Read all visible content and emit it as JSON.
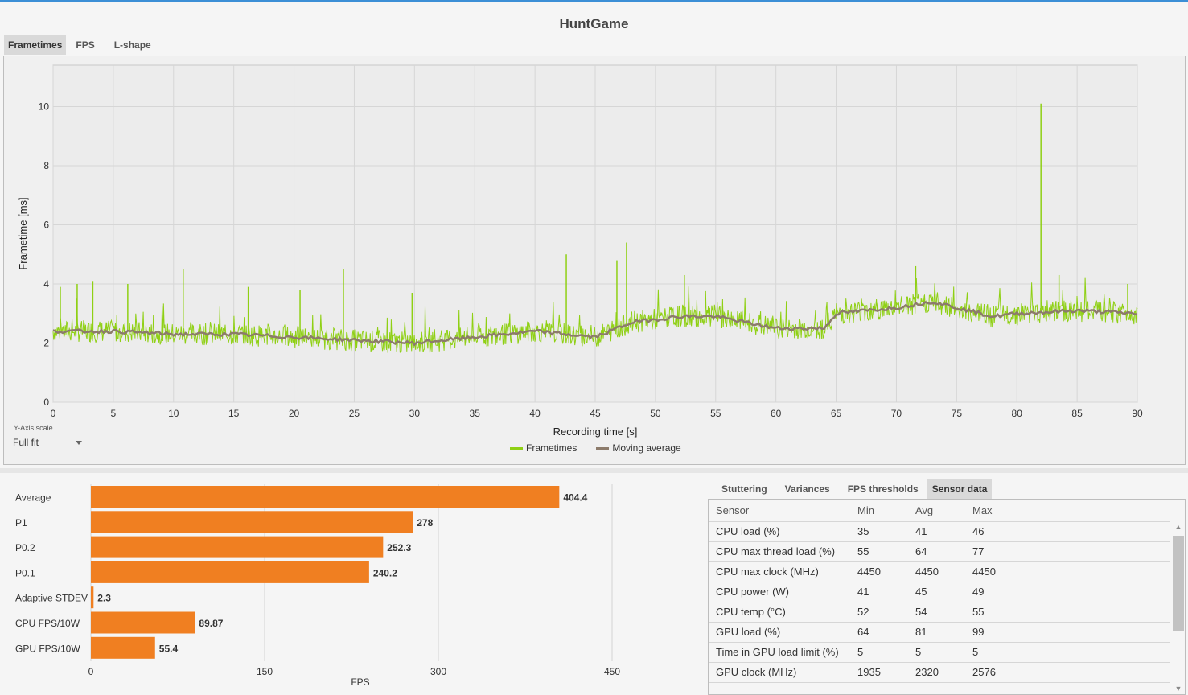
{
  "app": {
    "title": "HuntGame"
  },
  "top_tabs": [
    {
      "label": "Frametimes",
      "active": true
    },
    {
      "label": "FPS",
      "active": false
    },
    {
      "label": "L-shape",
      "active": false
    }
  ],
  "y_axis_scale": {
    "label": "Y-Axis scale",
    "value": "Full fit"
  },
  "legend": [
    {
      "label": "Frametimes",
      "color": "#8fd014"
    },
    {
      "label": "Moving average",
      "color": "#8c7b6b"
    }
  ],
  "bottom_tabs": [
    {
      "label": "Stuttering",
      "active": false
    },
    {
      "label": "Variances",
      "active": false
    },
    {
      "label": "FPS thresholds",
      "active": false
    },
    {
      "label": "Sensor data",
      "active": true
    }
  ],
  "sensor_table": {
    "headers": [
      "Sensor",
      "Min",
      "Avg",
      "Max"
    ],
    "rows": [
      [
        "CPU load (%)",
        "35",
        "41",
        "46"
      ],
      [
        "CPU max thread load (%)",
        "55",
        "64",
        "77"
      ],
      [
        "CPU max clock (MHz)",
        "4450",
        "4450",
        "4450"
      ],
      [
        "CPU power (W)",
        "41",
        "45",
        "49"
      ],
      [
        "CPU temp (°C)",
        "52",
        "54",
        "55"
      ],
      [
        "GPU load (%)",
        "64",
        "81",
        "99"
      ],
      [
        "Time in GPU load limit (%)",
        "5",
        "5",
        "5"
      ],
      [
        "GPU clock (MHz)",
        "1935",
        "2320",
        "2576"
      ]
    ]
  },
  "chart_data": [
    {
      "type": "line",
      "xlabel": "Recording time [s]",
      "ylabel": "Frametime [ms]",
      "xlim": [
        0,
        90
      ],
      "ylim": [
        0,
        11.4
      ],
      "x_ticks": [
        0,
        5,
        10,
        15,
        20,
        25,
        30,
        35,
        40,
        45,
        50,
        55,
        60,
        65,
        70,
        75,
        80,
        85,
        90
      ],
      "y_ticks": [
        0,
        2,
        4,
        6,
        8,
        10
      ],
      "grid": true,
      "legend_position": "bottom",
      "series": [
        {
          "name": "Frametimes",
          "color": "#8fd014"
        },
        {
          "name": "Moving average",
          "color": "#8c7b6b"
        }
      ],
      "moving_average": {
        "x": [
          0,
          5,
          10,
          15,
          20,
          25,
          30,
          35,
          40,
          45,
          48,
          50,
          52,
          55,
          60,
          64,
          65,
          70,
          73,
          75,
          78,
          80,
          85,
          90
        ],
        "y": [
          2.4,
          2.4,
          2.3,
          2.3,
          2.2,
          2.1,
          2.0,
          2.2,
          2.4,
          2.2,
          2.7,
          2.8,
          2.9,
          2.9,
          2.5,
          2.5,
          3.0,
          3.2,
          3.4,
          3.2,
          2.9,
          3.0,
          3.1,
          3.0
        ]
      },
      "spikes": [
        {
          "x": 0.6,
          "y": 3.9
        },
        {
          "x": 2,
          "y": 4.0
        },
        {
          "x": 3.3,
          "y": 4.1
        },
        {
          "x": 6.2,
          "y": 4.0
        },
        {
          "x": 10.8,
          "y": 4.5
        },
        {
          "x": 16.2,
          "y": 3.9
        },
        {
          "x": 20.5,
          "y": 3.8
        },
        {
          "x": 24.1,
          "y": 4.5
        },
        {
          "x": 29.8,
          "y": 3.7
        },
        {
          "x": 42.6,
          "y": 5.0
        },
        {
          "x": 46.8,
          "y": 4.8
        },
        {
          "x": 47.6,
          "y": 5.4
        },
        {
          "x": 52.4,
          "y": 4.3
        },
        {
          "x": 71.6,
          "y": 4.6
        },
        {
          "x": 82,
          "y": 10.1
        },
        {
          "x": 83.5,
          "y": 4.3
        },
        {
          "x": 89.2,
          "y": 4.0
        }
      ]
    },
    {
      "type": "bar",
      "orientation": "horizontal",
      "xlabel": "FPS",
      "xlim": [
        0,
        450
      ],
      "x_ticks": [
        0,
        150,
        300,
        450
      ],
      "categories": [
        "Average",
        "P1",
        "P0.2",
        "P0.1",
        "Adaptive STDEV",
        "CPU FPS/10W",
        "GPU FPS/10W"
      ],
      "values": [
        404.4,
        278,
        252.3,
        240.2,
        2.3,
        89.87,
        55.4
      ],
      "value_labels": [
        "404.4",
        "278",
        "252.3",
        "240.2",
        "2.3",
        "89.87",
        "55.4"
      ],
      "color": "#f07f21"
    }
  ]
}
